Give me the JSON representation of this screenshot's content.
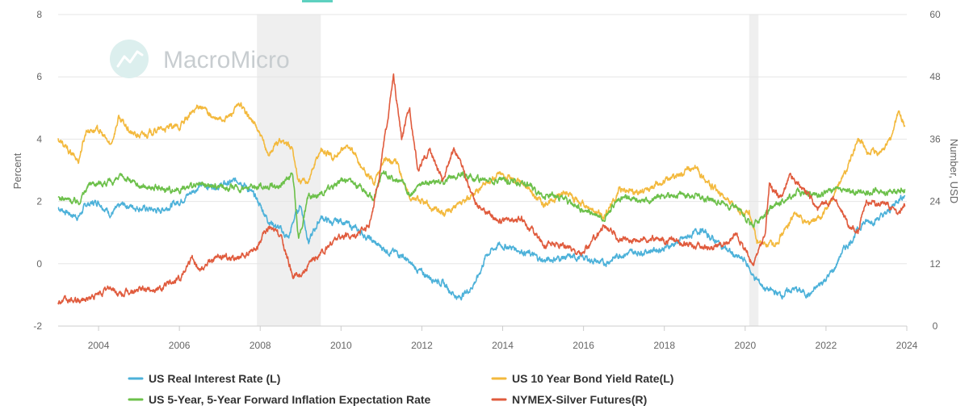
{
  "watermark": {
    "text": "MacroMicro"
  },
  "chart_data": {
    "type": "line",
    "x_ticks": [
      "2004",
      "2006",
      "2008",
      "2010",
      "2012",
      "2014",
      "2016",
      "2018",
      "2020",
      "2022",
      "2024"
    ],
    "x_range": [
      "2003-01",
      "2024-01"
    ],
    "left_axis": {
      "label": "Percent",
      "ylim": [
        -2,
        8
      ],
      "ticks": [
        "-2",
        "0",
        "2",
        "4",
        "6",
        "8"
      ]
    },
    "right_axis": {
      "label": "Number, USD",
      "ylim": [
        0,
        60
      ],
      "ticks": [
        "0",
        "12",
        "24",
        "36",
        "48",
        "60"
      ]
    },
    "shaded_periods": [
      {
        "start": 2007.92,
        "end": 2009.5
      },
      {
        "start": 2020.1,
        "end": 2020.33
      }
    ],
    "grid": "horizontal",
    "legend_position": "bottom",
    "series": [
      {
        "name": "US Real Interest Rate (L)",
        "axis": "left",
        "color": "#4cb1d9",
        "points": [
          [
            2003.0,
            1.8
          ],
          [
            2003.3,
            1.6
          ],
          [
            2003.5,
            1.5
          ],
          [
            2003.7,
            1.9
          ],
          [
            2004.0,
            2.0
          ],
          [
            2004.3,
            1.6
          ],
          [
            2004.6,
            1.9
          ],
          [
            2005.0,
            1.8
          ],
          [
            2005.5,
            1.7
          ],
          [
            2006.0,
            2.0
          ],
          [
            2006.5,
            2.5
          ],
          [
            2007.0,
            2.5
          ],
          [
            2007.5,
            2.7
          ],
          [
            2007.9,
            2.1
          ],
          [
            2008.2,
            1.4
          ],
          [
            2008.5,
            1.1
          ],
          [
            2008.7,
            0.8
          ],
          [
            2008.85,
            1.5
          ],
          [
            2009.0,
            1.9
          ],
          [
            2009.2,
            0.7
          ],
          [
            2009.5,
            1.5
          ],
          [
            2009.8,
            1.3
          ],
          [
            2010.0,
            1.4
          ],
          [
            2010.5,
            1.0
          ],
          [
            2010.9,
            0.6
          ],
          [
            2011.2,
            0.4
          ],
          [
            2011.5,
            0.3
          ],
          [
            2011.7,
            0.0
          ],
          [
            2012.0,
            -0.3
          ],
          [
            2012.5,
            -0.6
          ],
          [
            2012.9,
            -1.1
          ],
          [
            2013.2,
            -0.8
          ],
          [
            2013.4,
            -0.4
          ],
          [
            2013.6,
            0.3
          ],
          [
            2013.9,
            0.6
          ],
          [
            2014.3,
            0.5
          ],
          [
            2014.7,
            0.3
          ],
          [
            2015.0,
            0.1
          ],
          [
            2015.5,
            0.2
          ],
          [
            2016.0,
            0.2
          ],
          [
            2016.5,
            0.0
          ],
          [
            2016.9,
            0.3
          ],
          [
            2017.5,
            0.4
          ],
          [
            2018.0,
            0.5
          ],
          [
            2018.5,
            0.8
          ],
          [
            2018.9,
            1.1
          ],
          [
            2019.3,
            0.7
          ],
          [
            2019.8,
            0.2
          ],
          [
            2020.0,
            0.1
          ],
          [
            2020.2,
            -0.4
          ],
          [
            2020.5,
            -0.8
          ],
          [
            2020.9,
            -1.0
          ],
          [
            2021.2,
            -0.8
          ],
          [
            2021.6,
            -1.0
          ],
          [
            2021.9,
            -0.6
          ],
          [
            2022.2,
            -0.2
          ],
          [
            2022.4,
            0.4
          ],
          [
            2022.6,
            0.7
          ],
          [
            2022.9,
            1.3
          ],
          [
            2023.2,
            1.4
          ],
          [
            2023.5,
            1.6
          ],
          [
            2023.8,
            2.1
          ],
          [
            2023.95,
            2.2
          ]
        ]
      },
      {
        "name": "US 10 Year Bond Yield Rate(L)",
        "axis": "left",
        "color": "#f3b93d",
        "points": [
          [
            2003.0,
            4.0
          ],
          [
            2003.2,
            3.7
          ],
          [
            2003.5,
            3.3
          ],
          [
            2003.7,
            4.3
          ],
          [
            2004.0,
            4.3
          ],
          [
            2004.3,
            3.8
          ],
          [
            2004.5,
            4.7
          ],
          [
            2004.8,
            4.2
          ],
          [
            2005.0,
            4.1
          ],
          [
            2005.5,
            4.3
          ],
          [
            2006.0,
            4.4
          ],
          [
            2006.5,
            5.1
          ],
          [
            2006.9,
            4.6
          ],
          [
            2007.2,
            4.7
          ],
          [
            2007.5,
            5.1
          ],
          [
            2007.9,
            4.4
          ],
          [
            2008.2,
            3.5
          ],
          [
            2008.5,
            4.0
          ],
          [
            2008.8,
            3.7
          ],
          [
            2008.95,
            2.6
          ],
          [
            2009.2,
            2.7
          ],
          [
            2009.5,
            3.7
          ],
          [
            2009.8,
            3.4
          ],
          [
            2010.2,
            3.8
          ],
          [
            2010.5,
            3.1
          ],
          [
            2010.8,
            2.6
          ],
          [
            2011.1,
            3.4
          ],
          [
            2011.4,
            3.2
          ],
          [
            2011.7,
            2.1
          ],
          [
            2012.0,
            2.0
          ],
          [
            2012.5,
            1.6
          ],
          [
            2013.0,
            1.9
          ],
          [
            2013.5,
            2.5
          ],
          [
            2013.9,
            2.9
          ],
          [
            2014.5,
            2.6
          ],
          [
            2015.0,
            1.9
          ],
          [
            2015.5,
            2.3
          ],
          [
            2016.0,
            1.9
          ],
          [
            2016.5,
            1.5
          ],
          [
            2016.9,
            2.4
          ],
          [
            2017.5,
            2.3
          ],
          [
            2018.0,
            2.7
          ],
          [
            2018.8,
            3.1
          ],
          [
            2019.0,
            2.7
          ],
          [
            2019.5,
            2.1
          ],
          [
            2019.8,
            1.7
          ],
          [
            2020.1,
            1.6
          ],
          [
            2020.3,
            0.7
          ],
          [
            2020.7,
            0.6
          ],
          [
            2021.0,
            1.1
          ],
          [
            2021.2,
            1.6
          ],
          [
            2021.6,
            1.3
          ],
          [
            2021.9,
            1.5
          ],
          [
            2022.2,
            2.2
          ],
          [
            2022.5,
            3.0
          ],
          [
            2022.8,
            4.0
          ],
          [
            2023.0,
            3.6
          ],
          [
            2023.3,
            3.5
          ],
          [
            2023.6,
            4.0
          ],
          [
            2023.8,
            4.9
          ],
          [
            2023.95,
            4.4
          ]
        ]
      },
      {
        "name": "US 5-Year, 5-Year Forward Inflation Expectation Rate",
        "axis": "left",
        "color": "#6cc04a",
        "points": [
          [
            2003.0,
            2.1
          ],
          [
            2003.5,
            2.0
          ],
          [
            2003.8,
            2.6
          ],
          [
            2004.3,
            2.6
          ],
          [
            2004.6,
            2.8
          ],
          [
            2005.0,
            2.5
          ],
          [
            2005.5,
            2.4
          ],
          [
            2006.0,
            2.4
          ],
          [
            2006.5,
            2.5
          ],
          [
            2007.0,
            2.5
          ],
          [
            2007.5,
            2.4
          ],
          [
            2008.0,
            2.5
          ],
          [
            2008.5,
            2.5
          ],
          [
            2008.8,
            2.9
          ],
          [
            2008.95,
            0.8
          ],
          [
            2009.2,
            2.2
          ],
          [
            2009.6,
            2.3
          ],
          [
            2010.0,
            2.7
          ],
          [
            2010.5,
            2.5
          ],
          [
            2010.8,
            2.1
          ],
          [
            2011.0,
            2.9
          ],
          [
            2011.5,
            2.6
          ],
          [
            2011.7,
            2.2
          ],
          [
            2012.0,
            2.6
          ],
          [
            2012.5,
            2.6
          ],
          [
            2013.0,
            2.9
          ],
          [
            2013.5,
            2.7
          ],
          [
            2014.0,
            2.7
          ],
          [
            2014.5,
            2.6
          ],
          [
            2015.0,
            2.2
          ],
          [
            2015.5,
            2.1
          ],
          [
            2016.0,
            1.7
          ],
          [
            2016.5,
            1.5
          ],
          [
            2016.9,
            2.1
          ],
          [
            2017.5,
            2.0
          ],
          [
            2018.0,
            2.2
          ],
          [
            2018.8,
            2.2
          ],
          [
            2019.3,
            2.0
          ],
          [
            2019.8,
            1.8
          ],
          [
            2020.2,
            1.2
          ],
          [
            2020.5,
            1.6
          ],
          [
            2020.9,
            2.0
          ],
          [
            2021.3,
            2.3
          ],
          [
            2021.8,
            2.2
          ],
          [
            2022.2,
            2.4
          ],
          [
            2022.6,
            2.3
          ],
          [
            2023.0,
            2.3
          ],
          [
            2023.5,
            2.3
          ],
          [
            2023.95,
            2.4
          ]
        ]
      },
      {
        "name": "NYMEX-Silver Futures(R)",
        "axis": "right",
        "color": "#e05b3d",
        "points": [
          [
            2003.0,
            4.8
          ],
          [
            2003.5,
            4.8
          ],
          [
            2004.0,
            6.0
          ],
          [
            2004.3,
            7.5
          ],
          [
            2004.5,
            6.0
          ],
          [
            2005.0,
            7.0
          ],
          [
            2005.5,
            7.2
          ],
          [
            2006.0,
            9.0
          ],
          [
            2006.3,
            13.5
          ],
          [
            2006.5,
            11.0
          ],
          [
            2007.0,
            13.5
          ],
          [
            2007.5,
            13.0
          ],
          [
            2007.9,
            14.8
          ],
          [
            2008.2,
            19.0
          ],
          [
            2008.5,
            17.5
          ],
          [
            2008.8,
            10.0
          ],
          [
            2008.95,
            9.5
          ],
          [
            2009.3,
            12.5
          ],
          [
            2009.6,
            14.5
          ],
          [
            2009.9,
            17.0
          ],
          [
            2010.3,
            17.5
          ],
          [
            2010.7,
            19.5
          ],
          [
            2010.95,
            29.0
          ],
          [
            2011.3,
            48.0
          ],
          [
            2011.5,
            36.0
          ],
          [
            2011.7,
            42.0
          ],
          [
            2011.9,
            30.0
          ],
          [
            2012.2,
            34.0
          ],
          [
            2012.5,
            28.0
          ],
          [
            2012.8,
            34.0
          ],
          [
            2013.0,
            31.0
          ],
          [
            2013.3,
            24.0
          ],
          [
            2013.6,
            22.0
          ],
          [
            2014.0,
            20.0
          ],
          [
            2014.5,
            20.5
          ],
          [
            2015.0,
            16.0
          ],
          [
            2015.5,
            15.5
          ],
          [
            2016.0,
            14.0
          ],
          [
            2016.5,
            19.5
          ],
          [
            2016.9,
            16.5
          ],
          [
            2017.5,
            17.0
          ],
          [
            2018.0,
            16.5
          ],
          [
            2018.5,
            16.0
          ],
          [
            2019.0,
            15.0
          ],
          [
            2019.5,
            15.5
          ],
          [
            2019.8,
            17.5
          ],
          [
            2020.2,
            12.0
          ],
          [
            2020.5,
            18.0
          ],
          [
            2020.6,
            27.0
          ],
          [
            2020.9,
            24.5
          ],
          [
            2021.1,
            29.0
          ],
          [
            2021.5,
            26.0
          ],
          [
            2021.8,
            22.5
          ],
          [
            2022.2,
            24.5
          ],
          [
            2022.6,
            19.0
          ],
          [
            2022.8,
            18.5
          ],
          [
            2023.0,
            24.0
          ],
          [
            2023.3,
            23.5
          ],
          [
            2023.5,
            24.0
          ],
          [
            2023.8,
            21.5
          ],
          [
            2023.95,
            23.0
          ]
        ]
      }
    ]
  }
}
